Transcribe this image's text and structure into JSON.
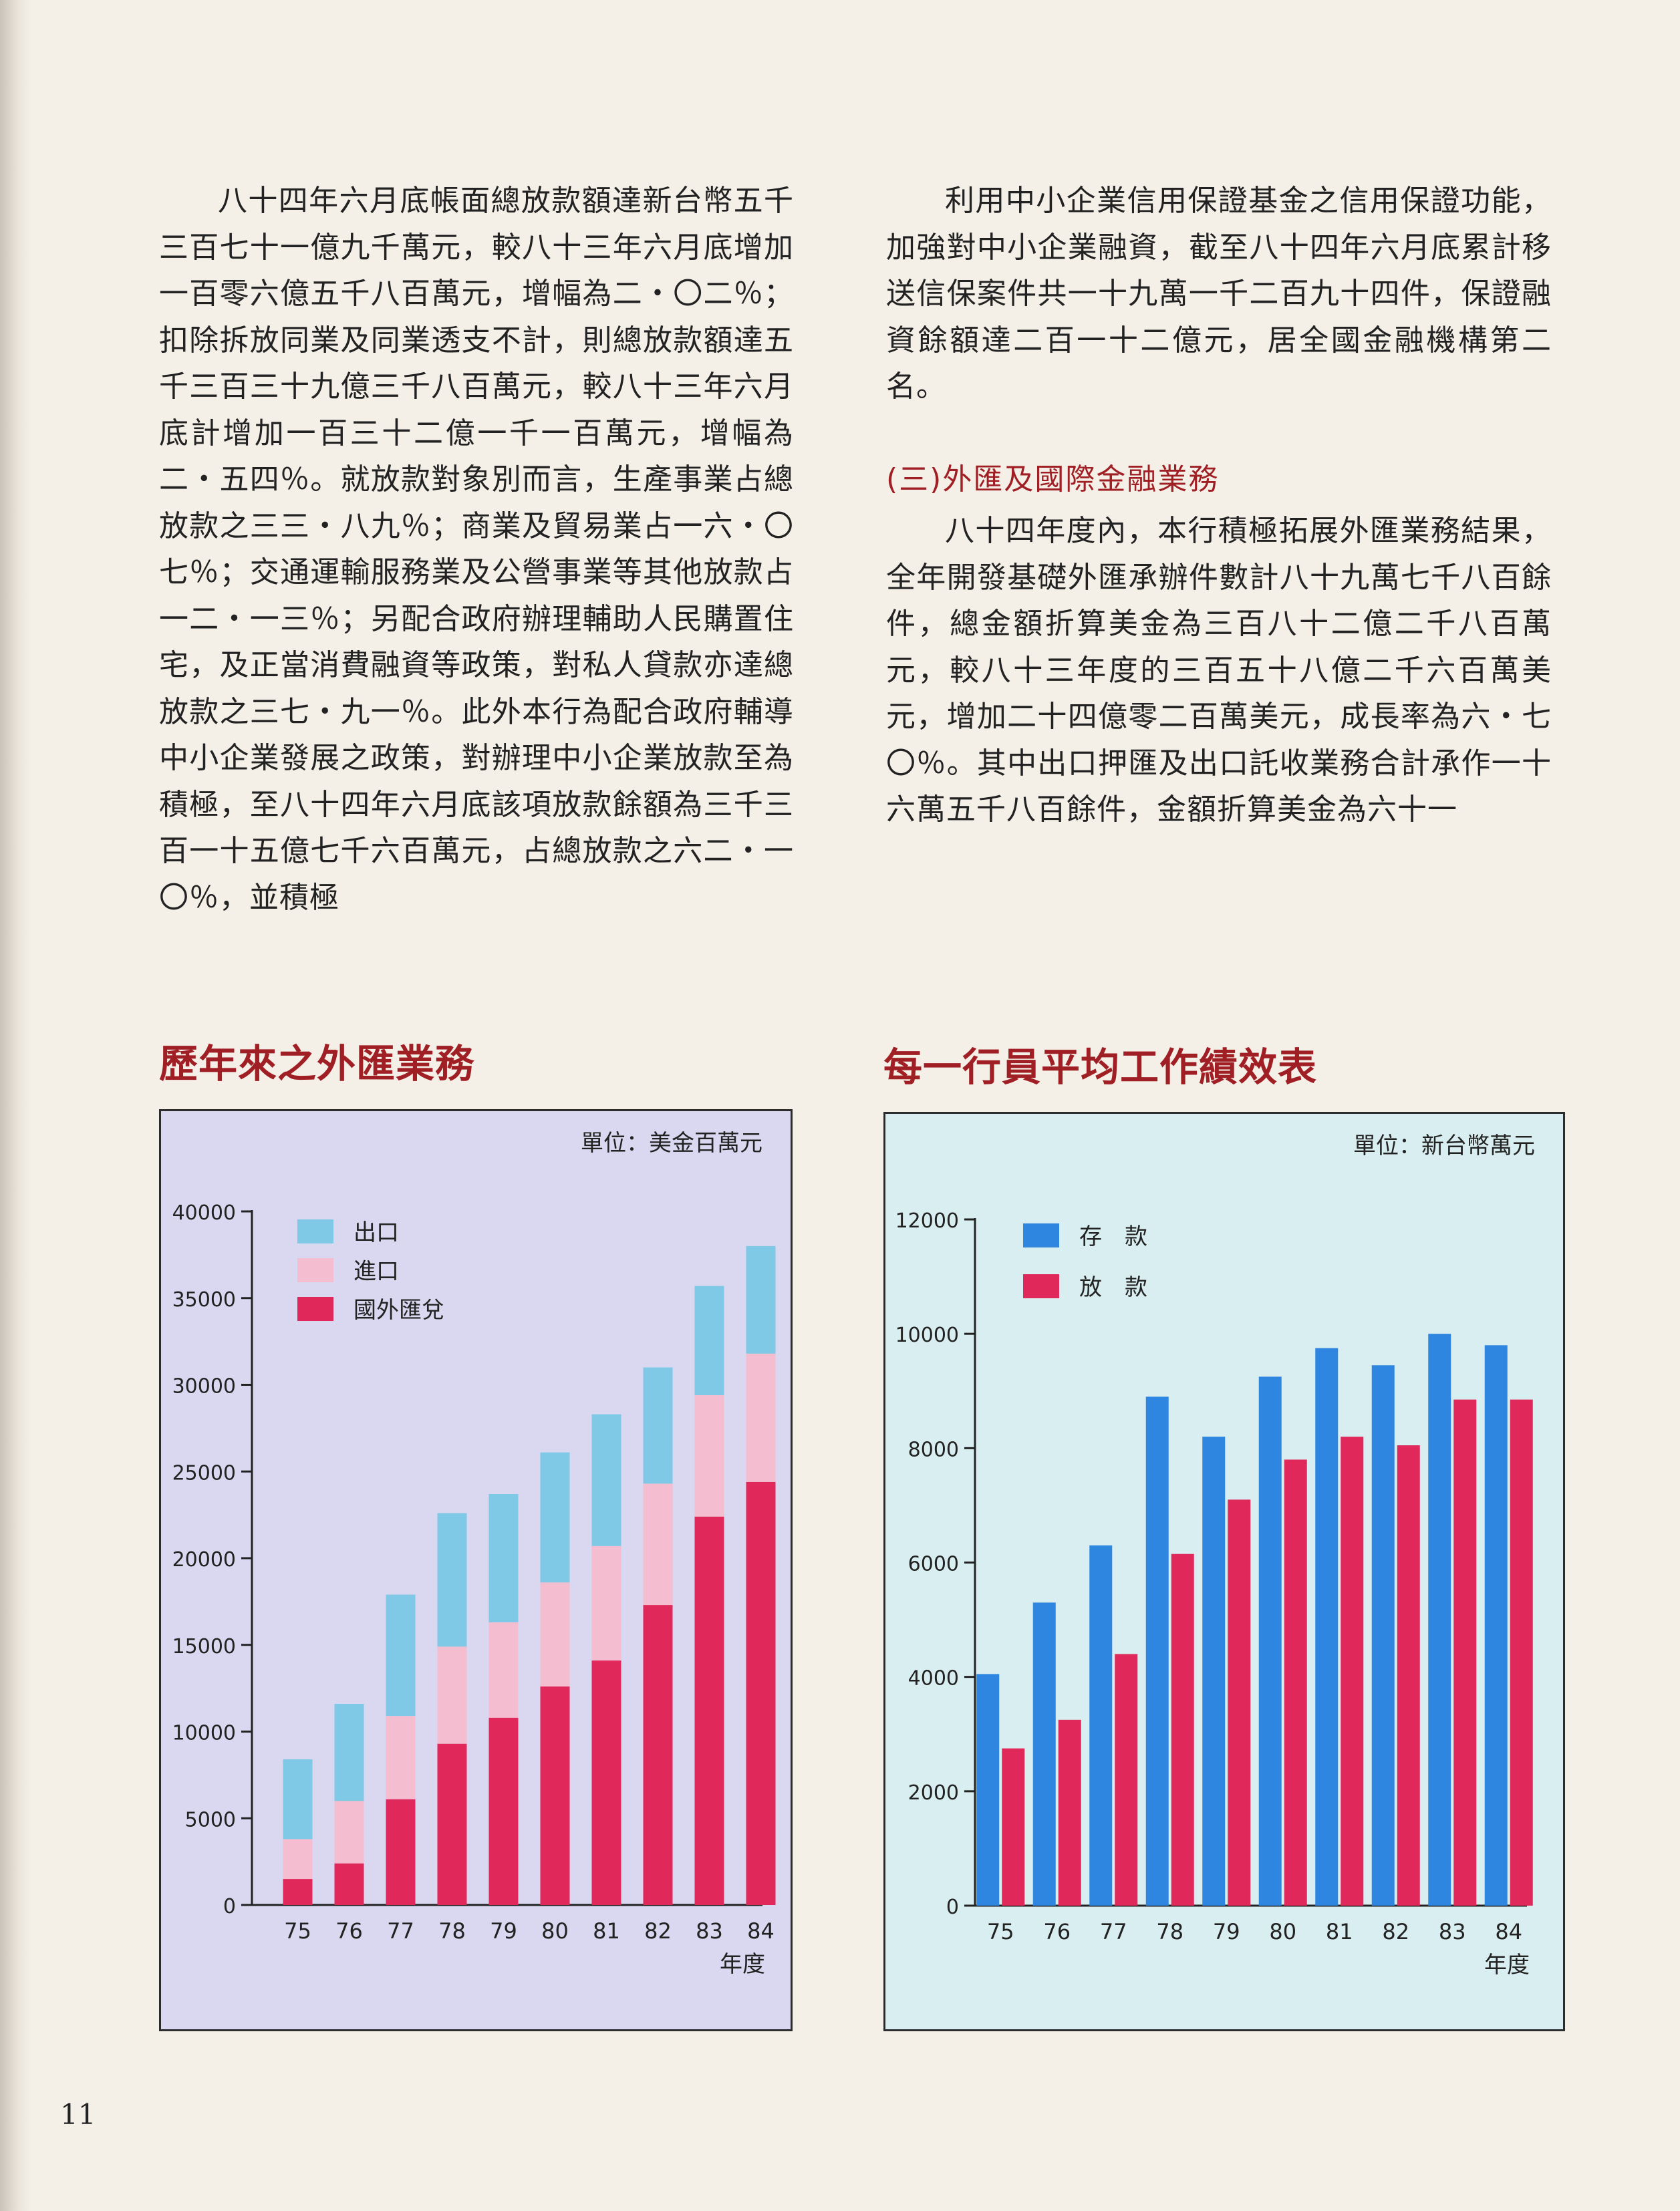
{
  "text": {
    "left_paragraph": "八十四年六月底帳面總放款額達新台幣五千三百七十一億九千萬元，較八十三年六月底增加一百零六億五千八百萬元，增幅為二‧〇二％；扣除拆放同業及同業透支不計，則總放款額達五千三百三十九億三千八百萬元，較八十三年六月底計增加一百三十二億一千一百萬元，增幅為二‧五四％。就放款對象別而言，生產事業占總放款之三三‧八九％；商業及貿易業占一六‧〇七％；交通運輸服務業及公營事業等其他放款占一二‧一三％；另配合政府辦理輔助人民購置住宅，及正當消費融資等政策，對私人貸款亦達總放款之三七‧九一％。此外本行為配合政府輔導中小企業發展之政策，對辦理中小企業放款至為積極，至八十四年六月底該項放款餘額為三千三百一十五億七千六百萬元，占總放款之六二‧一〇％，並積極",
    "right_paragraph_1": "利用中小企業信用保證基金之信用保證功能，加強對中小企業融資，截至八十四年六月底累計移送信保案件共一十九萬一千二百九十四件，保證融資餘額達二百一十二億元，居全國金融機構第二名。",
    "section_heading": "(三)外匯及國際金融業務",
    "right_paragraph_2": "八十四年度內，本行積極拓展外匯業務結果，全年開發基礎外匯承辦件數計八十九萬七千八百餘件，總金額折算美金為三百八十二億二千八百萬元，較八十三年度的三百五十八億二千六百萬美元，增加二十四億零二百萬美元，成長率為六‧七〇％。其中出口押匯及出口託收業務合計承作一十六萬五千八百餘件，金額折算美金為六十一",
    "page_number": "11"
  },
  "chart_data": [
    {
      "type": "bar",
      "stacked": true,
      "title": "歷年來之外匯業務",
      "unit": "單位：美金百萬元",
      "xlabel": "年度",
      "categories": [
        "75",
        "76",
        "77",
        "78",
        "79",
        "80",
        "81",
        "82",
        "83",
        "84"
      ],
      "ylim": [
        0,
        40000
      ],
      "yticks": [
        0,
        5000,
        10000,
        15000,
        20000,
        25000,
        30000,
        35000,
        40000
      ],
      "legend_position": "top-left",
      "background": "#d9d8f0",
      "series": [
        {
          "name": "國外匯兌",
          "color": "#e0285a",
          "values": [
            1500,
            2400,
            6100,
            9300,
            10800,
            12600,
            14100,
            17300,
            22400,
            24400
          ]
        },
        {
          "name": "進口",
          "color": "#f5bdd0",
          "values": [
            2300,
            3600,
            4800,
            5600,
            5500,
            6000,
            6600,
            7000,
            7000,
            7400
          ]
        },
        {
          "name": "出口",
          "color": "#7fc9e6",
          "values": [
            4600,
            5600,
            7000,
            7700,
            7400,
            7500,
            7600,
            6700,
            6300,
            6200
          ]
        }
      ]
    },
    {
      "type": "bar",
      "stacked": false,
      "title": "每一行員平均工作績效表",
      "unit": "單位：新台幣萬元",
      "xlabel": "年度",
      "categories": [
        "75",
        "76",
        "77",
        "78",
        "79",
        "80",
        "81",
        "82",
        "83",
        "84"
      ],
      "ylim": [
        0,
        12000
      ],
      "yticks": [
        0,
        2000,
        4000,
        6000,
        8000,
        10000,
        12000
      ],
      "legend_position": "top-left",
      "background": "#d9eef0",
      "series": [
        {
          "name": "存　款",
          "color": "#2f86e0",
          "values": [
            4050,
            5300,
            6300,
            8900,
            8200,
            9250,
            9750,
            9450,
            10000,
            9800
          ]
        },
        {
          "name": "放　款",
          "color": "#e0285a",
          "values": [
            2750,
            3250,
            4400,
            6150,
            7100,
            7800,
            8200,
            8050,
            8850,
            8850
          ]
        }
      ]
    }
  ]
}
